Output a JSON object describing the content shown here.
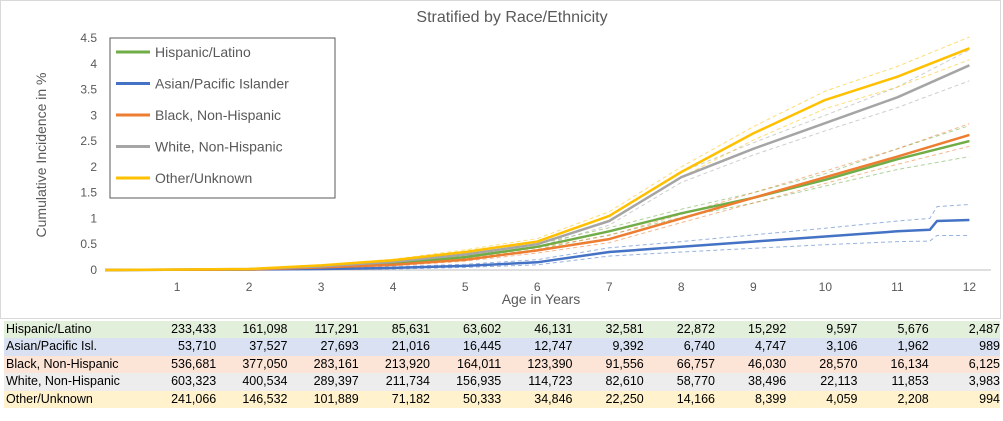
{
  "chart_data": {
    "type": "line",
    "title": "Stratified by Race/Ethnicity",
    "xlabel": "Age in Years",
    "ylabel": "Cumulative Incidence in %",
    "xlim": [
      0,
      12.3
    ],
    "ylim": [
      0,
      4.5
    ],
    "x_ticks": [
      "1",
      "2",
      "3",
      "4",
      "5",
      "6",
      "7",
      "8",
      "9",
      "10",
      "11",
      "12"
    ],
    "y_ticks": [
      "0",
      "0.5",
      "1",
      "1.5",
      "2",
      "2.5",
      "3",
      "3.5",
      "4",
      "4.5"
    ],
    "grid": false,
    "legend_position": "top-left",
    "confidence_band": "dashed",
    "series": [
      {
        "name": "Hispanic/Latino",
        "color": "#70ad47",
        "x": [
          0,
          2,
          3,
          4,
          5,
          6,
          7,
          8,
          9,
          10,
          11,
          12
        ],
        "values": [
          0,
          0.01,
          0.05,
          0.12,
          0.25,
          0.45,
          0.75,
          1.1,
          1.4,
          1.75,
          2.15,
          2.5
        ],
        "ci_width": [
          0,
          0.005,
          0.01,
          0.02,
          0.03,
          0.05,
          0.07,
          0.08,
          0.1,
          0.12,
          0.2,
          0.3
        ]
      },
      {
        "name": "Asian/Pacific Islander",
        "color": "#4472c4",
        "x": [
          0,
          2,
          3,
          4,
          5,
          6,
          7,
          8,
          9,
          10,
          11,
          11.45,
          11.55,
          12
        ],
        "values": [
          0,
          0.01,
          0.02,
          0.04,
          0.08,
          0.15,
          0.35,
          0.45,
          0.55,
          0.65,
          0.75,
          0.78,
          0.95,
          0.97
        ],
        "ci_width": [
          0,
          0.005,
          0.01,
          0.02,
          0.03,
          0.05,
          0.08,
          0.1,
          0.13,
          0.16,
          0.2,
          0.22,
          0.28,
          0.3
        ]
      },
      {
        "name": "Black, Non-Hispanic",
        "color": "#ed7d31",
        "x": [
          0,
          2,
          3,
          4,
          5,
          6,
          7,
          8,
          9,
          10,
          11,
          12
        ],
        "values": [
          0,
          0.01,
          0.05,
          0.1,
          0.2,
          0.38,
          0.6,
          1.0,
          1.4,
          1.8,
          2.2,
          2.62
        ],
        "ci_width": [
          0,
          0.005,
          0.01,
          0.02,
          0.03,
          0.05,
          0.07,
          0.08,
          0.1,
          0.12,
          0.15,
          0.22
        ]
      },
      {
        "name": "White, Non-Hispanic",
        "color": "#a5a5a5",
        "x": [
          0,
          2,
          3,
          4,
          5,
          6,
          7,
          8,
          9,
          10,
          11,
          12
        ],
        "values": [
          0,
          0.02,
          0.07,
          0.16,
          0.3,
          0.5,
          0.95,
          1.8,
          2.35,
          2.85,
          3.35,
          3.97
        ],
        "ci_width": [
          0,
          0.005,
          0.01,
          0.02,
          0.03,
          0.05,
          0.08,
          0.1,
          0.12,
          0.15,
          0.2,
          0.3
        ]
      },
      {
        "name": "Other/Unknown",
        "color": "#ffc000",
        "x": [
          0,
          2,
          3,
          4,
          5,
          6,
          7,
          8,
          9,
          10,
          11,
          12
        ],
        "values": [
          0,
          0.02,
          0.09,
          0.19,
          0.35,
          0.55,
          1.05,
          1.9,
          2.65,
          3.3,
          3.75,
          4.3
        ],
        "ci_width": [
          0,
          0.005,
          0.01,
          0.02,
          0.04,
          0.06,
          0.08,
          0.1,
          0.13,
          0.17,
          0.2,
          0.22
        ]
      }
    ]
  },
  "risk_table": {
    "rows": [
      {
        "label": "Hispanic/Latino",
        "bg": "#e2efda",
        "values": [
          "233,433",
          "161,098",
          "117,291",
          "85,631",
          "63,602",
          "46,131",
          "32,581",
          "22,872",
          "15,292",
          "9,597",
          "5,676",
          "2,487"
        ]
      },
      {
        "label": "Asian/Pacific Isl.",
        "bg": "#d9e1f2",
        "values": [
          "53,710",
          "37,527",
          "27,693",
          "21,016",
          "16,445",
          "12,747",
          "9,392",
          "6,740",
          "4,747",
          "3,106",
          "1,962",
          "989"
        ]
      },
      {
        "label": "Black, Non-Hispanic",
        "bg": "#fce4d6",
        "values": [
          "536,681",
          "377,050",
          "283,161",
          "213,920",
          "164,011",
          "123,390",
          "91,556",
          "66,757",
          "46,030",
          "28,570",
          "16,134",
          "6,125"
        ]
      },
      {
        "label": "White, Non-Hispanic",
        "bg": "#ededed",
        "values": [
          "603,323",
          "400,534",
          "289,397",
          "211,734",
          "156,935",
          "114,723",
          "82,610",
          "58,770",
          "38,496",
          "22,113",
          "11,853",
          "3,983"
        ]
      },
      {
        "label": "Other/Unknown",
        "bg": "#fff2cc",
        "values": [
          "241,066",
          "146,532",
          "101,889",
          "71,182",
          "50,333",
          "34,846",
          "22,250",
          "14,166",
          "8,399",
          "4,059",
          "2,208",
          "994"
        ]
      }
    ]
  }
}
